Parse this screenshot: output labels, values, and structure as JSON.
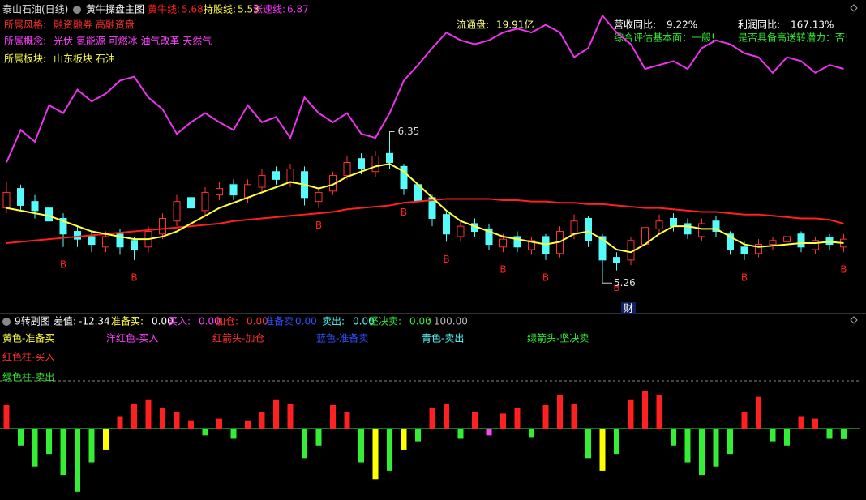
{
  "header": {
    "stock": "泰山石油(日线)",
    "info": [
      {
        "label": "所属风格:",
        "value": "融资融券 高融资盘"
      },
      {
        "label": "所属概念:",
        "value": "光伏 氢能源 可燃冰 油气改革 天然气"
      },
      {
        "label": "所属板块:",
        "value": "山东板块 石油"
      }
    ],
    "stats": [
      {
        "label": "流通盘:",
        "value": "19.91亿"
      },
      {
        "label": "营收同比:",
        "value": "9.22%"
      },
      {
        "label": "利润同比:",
        "value": "167.13%"
      }
    ],
    "assessments": [
      "综合评估基本面：一般!",
      "是否具备高送转潜力：否!"
    ],
    "marker": "财"
  },
  "chart_data": [
    {
      "type": "candlestick",
      "title": "黄牛操盘主图",
      "ylim": [
        5.0,
        7.4
      ],
      "up_color": "#ff3232",
      "down_color": "#54fcfc",
      "open": [
        5.8,
        5.95,
        5.85,
        5.8,
        5.72,
        5.62,
        5.58,
        5.5,
        5.6,
        5.55,
        5.5,
        5.6,
        5.7,
        5.88,
        5.78,
        5.9,
        5.98,
        5.88,
        5.96,
        6.08,
        6.0,
        6.08,
        5.85,
        5.93,
        6.05,
        6.18,
        6.08,
        6.22,
        6.12,
        5.98,
        5.88,
        5.75,
        5.58,
        5.68,
        5.64,
        5.5,
        5.58,
        5.48,
        5.58,
        5.45,
        5.6,
        5.72,
        5.58,
        5.42,
        5.4,
        5.52,
        5.64,
        5.72,
        5.68,
        5.58,
        5.7,
        5.6,
        5.5,
        5.45,
        5.52,
        5.54,
        5.6,
        5.48,
        5.57,
        5.5
      ],
      "high": [
        6.0,
        5.98,
        5.9,
        5.84,
        5.76,
        5.66,
        5.62,
        5.62,
        5.64,
        5.58,
        5.66,
        5.76,
        5.9,
        5.92,
        5.96,
        6.0,
        6.02,
        6.02,
        6.1,
        6.12,
        6.14,
        6.12,
        5.96,
        6.08,
        6.2,
        6.22,
        6.24,
        6.35,
        6.14,
        6.0,
        5.9,
        5.78,
        5.7,
        5.72,
        5.68,
        5.6,
        5.62,
        5.58,
        5.6,
        5.66,
        5.75,
        5.74,
        5.6,
        5.46,
        5.58,
        5.7,
        5.75,
        5.76,
        5.72,
        5.72,
        5.74,
        5.62,
        5.54,
        5.56,
        5.58,
        5.62,
        5.62,
        5.58,
        5.6,
        5.6
      ],
      "low": [
        5.76,
        5.78,
        5.72,
        5.66,
        5.5,
        5.5,
        5.46,
        5.46,
        5.44,
        5.4,
        5.46,
        5.56,
        5.66,
        5.76,
        5.74,
        5.86,
        5.86,
        5.84,
        5.92,
        5.98,
        5.96,
        5.82,
        5.8,
        5.9,
        6.02,
        6.06,
        6.04,
        6.1,
        5.9,
        5.8,
        5.66,
        5.54,
        5.54,
        5.58,
        5.48,
        5.46,
        5.46,
        5.44,
        5.4,
        5.42,
        5.56,
        5.5,
        5.26,
        5.32,
        5.36,
        5.5,
        5.6,
        5.62,
        5.56,
        5.55,
        5.58,
        5.44,
        5.4,
        5.42,
        5.48,
        5.5,
        5.46,
        5.45,
        5.48,
        5.46
      ],
      "close": [
        5.92,
        5.82,
        5.78,
        5.7,
        5.6,
        5.56,
        5.52,
        5.58,
        5.5,
        5.48,
        5.62,
        5.72,
        5.85,
        5.8,
        5.92,
        5.95,
        5.9,
        5.98,
        6.05,
        6.02,
        6.1,
        5.88,
        5.92,
        6.05,
        6.15,
        6.1,
        6.2,
        6.15,
        5.95,
        5.85,
        5.72,
        5.6,
        5.66,
        5.62,
        5.52,
        5.56,
        5.5,
        5.55,
        5.45,
        5.62,
        5.7,
        5.55,
        5.4,
        5.38,
        5.55,
        5.65,
        5.7,
        5.66,
        5.6,
        5.68,
        5.62,
        5.48,
        5.45,
        5.52,
        5.55,
        5.58,
        5.5,
        5.55,
        5.52,
        5.56
      ],
      "series": [
        {
          "name": "黄牛线:",
          "color": "#ff2020",
          "values": [
            5.53,
            5.54,
            5.55,
            5.56,
            5.57,
            5.58,
            5.59,
            5.6,
            5.61,
            5.62,
            5.63,
            5.64,
            5.65,
            5.66,
            5.67,
            5.68,
            5.7,
            5.71,
            5.72,
            5.73,
            5.74,
            5.75,
            5.76,
            5.77,
            5.79,
            5.8,
            5.81,
            5.82,
            5.84,
            5.85,
            5.86,
            5.87,
            5.87,
            5.87,
            5.87,
            5.86,
            5.86,
            5.85,
            5.85,
            5.84,
            5.84,
            5.83,
            5.83,
            5.82,
            5.81,
            5.8,
            5.8,
            5.79,
            5.78,
            5.77,
            5.77,
            5.76,
            5.75,
            5.75,
            5.74,
            5.73,
            5.72,
            5.72,
            5.71,
            5.68
          ]
        },
        {
          "name": "持股线:",
          "color": "#ffff40",
          "values": [
            5.8,
            5.78,
            5.76,
            5.74,
            5.7,
            5.66,
            5.62,
            5.6,
            5.58,
            5.56,
            5.56,
            5.58,
            5.62,
            5.68,
            5.74,
            5.8,
            5.84,
            5.88,
            5.92,
            5.96,
            6.0,
            5.98,
            5.95,
            5.98,
            6.04,
            6.08,
            6.12,
            6.14,
            6.08,
            5.98,
            5.88,
            5.78,
            5.7,
            5.66,
            5.62,
            5.58,
            5.56,
            5.54,
            5.52,
            5.54,
            5.6,
            5.62,
            5.56,
            5.48,
            5.46,
            5.52,
            5.6,
            5.66,
            5.66,
            5.64,
            5.64,
            5.58,
            5.52,
            5.5,
            5.51,
            5.52,
            5.53,
            5.53,
            5.54,
            5.53
          ]
        },
        {
          "name": "涨速线:",
          "color": "#ee33ee",
          "values": [
            6.15,
            6.4,
            6.31,
            6.59,
            6.53,
            6.71,
            6.62,
            6.68,
            6.78,
            6.81,
            6.65,
            6.56,
            6.37,
            6.46,
            6.53,
            6.46,
            6.4,
            6.59,
            6.46,
            6.5,
            6.34,
            6.65,
            6.53,
            6.46,
            6.53,
            6.37,
            6.34,
            6.53,
            6.78,
            6.9,
            7.03,
            7.15,
            7.09,
            7.06,
            7.09,
            7.15,
            7.18,
            7.15,
            7.21,
            7.15,
            6.96,
            7.03,
            7.28,
            7.15,
            7.06,
            6.87,
            6.9,
            6.93,
            6.87,
            7.03,
            7.09,
            7.06,
            6.99,
            6.96,
            6.84,
            6.96,
            6.93,
            6.84,
            6.9,
            6.87
          ]
        }
      ],
      "signals": [
        null,
        null,
        null,
        null,
        "B",
        null,
        null,
        null,
        null,
        "B",
        null,
        null,
        null,
        null,
        null,
        null,
        null,
        null,
        null,
        null,
        null,
        null,
        "B",
        null,
        null,
        null,
        null,
        null,
        "B",
        null,
        null,
        "B",
        null,
        null,
        null,
        "B",
        null,
        null,
        "B",
        null,
        null,
        null,
        null,
        "B",
        null,
        null,
        null,
        null,
        null,
        null,
        null,
        null,
        "B",
        null,
        null,
        null,
        null,
        null,
        null,
        "B"
      ]
    },
    {
      "type": "bar",
      "title": "9转副图",
      "ylim": [
        -80,
        55
      ],
      "value_label": "差值:",
      "indicators": [
        {
          "label": "准备买:",
          "value": "0.00",
          "color": "#ffff40"
        },
        {
          "label": "买入:",
          "value": "0.00",
          "color": "#ff40ff"
        },
        {
          "label": "加仓:",
          "value": "0.00",
          "color": "#ff3030"
        },
        {
          "label": "准备卖",
          "value": "0.00",
          "color": "#3050ff"
        },
        {
          "label": "卖出:",
          "value": "0.00",
          "color": "#54fcfc"
        },
        {
          "label": "坚决卖:",
          "value": "0.00",
          "color": "#33ee33"
        }
      ],
      "extra": ": 100.00",
      "legend": [
        {
          "text": "黄色-准备买",
          "color": "#ffff40"
        },
        {
          "text": "洋红色-买入",
          "color": "#ff40ff"
        },
        {
          "text": "红箭头-加仓",
          "color": "#ff3030"
        },
        {
          "text": "蓝色-准备卖",
          "color": "#3050ff"
        },
        {
          "text": "青色-卖出",
          "color": "#54fcfc"
        },
        {
          "text": "绿箭头-坚决卖",
          "color": "#33ee33"
        },
        {
          "text": "红色柱-买入",
          "color": "#ff3030"
        },
        {
          "text": "绿色柱-卖出",
          "color": "#33ee33"
        }
      ],
      "values": [
        28,
        -20,
        -45,
        -30,
        -55,
        -75,
        -40,
        -25,
        15,
        30,
        35,
        25,
        20,
        10,
        -8,
        12,
        -12,
        10,
        20,
        35,
        30,
        -35,
        -20,
        28,
        20,
        -40,
        -60,
        -50,
        -25,
        -15,
        25,
        30,
        -12,
        20,
        -8,
        18,
        25,
        -10,
        28,
        40,
        30,
        -35,
        -50,
        -30,
        35,
        45,
        40,
        -20,
        -40,
        -55,
        -45,
        -30,
        20,
        38,
        -15,
        -20,
        15,
        12,
        -12,
        -12.34
      ],
      "colors": [
        "#ff2020",
        "#33ee33",
        "#33ee33",
        "#33ee33",
        "#33ee33",
        "#33ee33",
        "#33ee33",
        "#ffff00",
        "#ff2020",
        "#ff2020",
        "#ff2020",
        "#ff2020",
        "#ff2020",
        "#ff2020",
        "#33ee33",
        "#ff2020",
        "#33ee33",
        "#ff2020",
        "#ff2020",
        "#ff2020",
        "#ff2020",
        "#33ee33",
        "#33ee33",
        "#ff2020",
        "#ff2020",
        "#33ee33",
        "#ffff00",
        "#33ee33",
        "#ffff00",
        "#33ee33",
        "#ff2020",
        "#ff2020",
        "#33ee33",
        "#ff2020",
        "#ff44ff",
        "#ff2020",
        "#ff2020",
        "#33ee33",
        "#ff2020",
        "#ff2020",
        "#ff2020",
        "#33ee33",
        "#ffff00",
        "#33ee33",
        "#ff2020",
        "#ff2020",
        "#ff2020",
        "#33ee33",
        "#33ee33",
        "#33ee33",
        "#33ee33",
        "#33ee33",
        "#ff2020",
        "#ff2020",
        "#33ee33",
        "#33ee33",
        "#ff2020",
        "#ff2020",
        "#33ee33",
        "#33ee33"
      ]
    }
  ]
}
